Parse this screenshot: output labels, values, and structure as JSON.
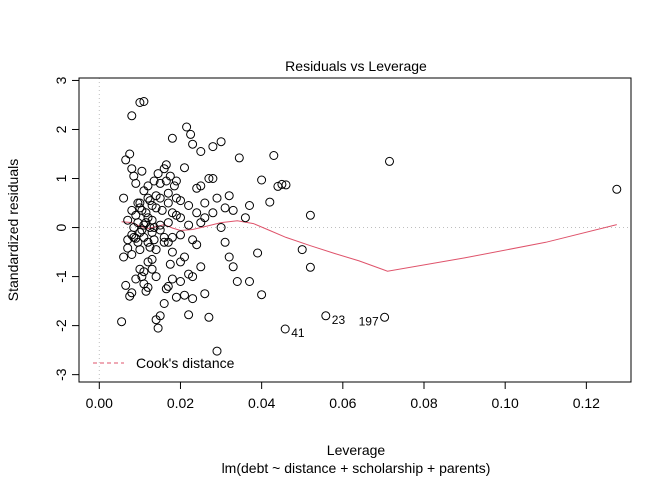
{
  "chart_data": {
    "type": "scatter",
    "title": "Residuals vs Leverage",
    "xlabel": "Leverage",
    "ylabel": "Standardized residuals",
    "subtitle": "lm(debt ~ distance + scholarship + parents)",
    "xlim": [
      -0.005,
      0.131
    ],
    "ylim": [
      -3.15,
      3.05
    ],
    "x_ticks": [
      0.0,
      0.02,
      0.04,
      0.06,
      0.08,
      0.1,
      0.12
    ],
    "x_tick_labels": [
      "0.00",
      "0.02",
      "0.04",
      "0.06",
      "0.08",
      "0.10",
      "0.12"
    ],
    "y_ticks": [
      -3,
      -2,
      -1,
      0,
      1,
      2,
      3
    ],
    "y_tick_labels": [
      "-3",
      "-2",
      "-1",
      "0",
      "1",
      "2",
      "3"
    ],
    "legend": {
      "label": "Cook's distance",
      "position": "bottom-left",
      "color": "#df536b"
    },
    "colors": {
      "points": "#000000",
      "smooth": "#df536b",
      "reference": "#bebebe"
    },
    "points": [
      [
        0.0055,
        -1.92
      ],
      [
        0.006,
        -0.6
      ],
      [
        0.0065,
        -1.18
      ],
      [
        0.007,
        -0.42
      ],
      [
        0.0075,
        -1.4
      ],
      [
        0.008,
        -1.33
      ],
      [
        0.0085,
        -0.2
      ],
      [
        0.008,
        -0.55
      ],
      [
        0.009,
        -1.05
      ],
      [
        0.0095,
        -0.3
      ],
      [
        0.01,
        -0.85
      ],
      [
        0.0105,
        -1.0
      ],
      [
        0.011,
        -0.9
      ],
      [
        0.0115,
        -1.3
      ],
      [
        0.012,
        -0.7
      ],
      [
        0.0125,
        -0.4
      ],
      [
        0.013,
        -0.65
      ],
      [
        0.0135,
        -0.25
      ],
      [
        0.014,
        -1.88
      ],
      [
        0.0145,
        -2.05
      ],
      [
        0.015,
        -1.8
      ],
      [
        0.016,
        -1.55
      ],
      [
        0.0165,
        -1.25
      ],
      [
        0.017,
        -1.2
      ],
      [
        0.0175,
        -0.75
      ],
      [
        0.018,
        -0.2
      ],
      [
        0.019,
        -1.42
      ],
      [
        0.02,
        -1.1
      ],
      [
        0.021,
        -1.38
      ],
      [
        0.022,
        -1.78
      ],
      [
        0.023,
        -1.45
      ],
      [
        0.024,
        -0.35
      ],
      [
        0.025,
        -0.8
      ],
      [
        0.026,
        -1.35
      ],
      [
        0.027,
        -1.83
      ],
      [
        0.029,
        -2.52
      ],
      [
        0.031,
        -0.3
      ],
      [
        0.032,
        -0.6
      ],
      [
        0.033,
        -0.8
      ],
      [
        0.034,
        -1.1
      ],
      [
        0.037,
        -1.1
      ],
      [
        0.039,
        -0.52
      ],
      [
        0.04,
        -1.37
      ],
      [
        0.01,
        -0.45
      ],
      [
        0.012,
        -0.3
      ],
      [
        0.011,
        -0.2
      ],
      [
        0.013,
        -0.1
      ],
      [
        0.015,
        -0.05
      ],
      [
        0.016,
        -0.3
      ],
      [
        0.018,
        -0.5
      ],
      [
        0.02,
        -0.7
      ],
      [
        0.021,
        -0.6
      ],
      [
        0.022,
        -0.95
      ],
      [
        0.01,
        -0.1
      ],
      [
        0.009,
        -0.22
      ],
      [
        0.008,
        -0.15
      ],
      [
        0.012,
        -1.22
      ],
      [
        0.014,
        -1.0
      ],
      [
        0.05,
        -0.45
      ],
      [
        0.052,
        -0.81
      ],
      [
        0.006,
        0.6
      ],
      [
        0.0065,
        1.38
      ],
      [
        0.007,
        0.15
      ],
      [
        0.0075,
        1.5
      ],
      [
        0.008,
        1.2
      ],
      [
        0.0085,
        1.05
      ],
      [
        0.009,
        0.9
      ],
      [
        0.0095,
        0.5
      ],
      [
        0.01,
        2.55
      ],
      [
        0.011,
        2.57
      ],
      [
        0.008,
        2.28
      ],
      [
        0.01,
        0.4
      ],
      [
        0.0105,
        0.35
      ],
      [
        0.011,
        0.75
      ],
      [
        0.0115,
        0.3
      ],
      [
        0.012,
        0.2
      ],
      [
        0.0125,
        0.55
      ],
      [
        0.013,
        0.15
      ],
      [
        0.0135,
        0.95
      ],
      [
        0.014,
        0.4
      ],
      [
        0.0145,
        1.1
      ],
      [
        0.015,
        0.6
      ],
      [
        0.0155,
        0.35
      ],
      [
        0.016,
        1.2
      ],
      [
        0.0165,
        1.28
      ],
      [
        0.017,
        0.5
      ],
      [
        0.0175,
        1.05
      ],
      [
        0.018,
        0.3
      ],
      [
        0.0185,
        0.85
      ],
      [
        0.019,
        0.6
      ],
      [
        0.02,
        0.2
      ],
      [
        0.021,
        1.22
      ],
      [
        0.0215,
        2.05
      ],
      [
        0.0225,
        1.9
      ],
      [
        0.023,
        1.7
      ],
      [
        0.024,
        0.8
      ],
      [
        0.025,
        1.55
      ],
      [
        0.026,
        0.5
      ],
      [
        0.027,
        1.0
      ],
      [
        0.028,
        1.65
      ],
      [
        0.029,
        0.6
      ],
      [
        0.03,
        1.75
      ],
      [
        0.031,
        0.4
      ],
      [
        0.032,
        0.65
      ],
      [
        0.033,
        0.35
      ],
      [
        0.0345,
        1.42
      ],
      [
        0.036,
        0.2
      ],
      [
        0.037,
        0.45
      ],
      [
        0.04,
        0.97
      ],
      [
        0.042,
        0.52
      ],
      [
        0.043,
        1.47
      ],
      [
        0.044,
        0.84
      ],
      [
        0.045,
        0.88
      ],
      [
        0.046,
        0.87
      ],
      [
        0.052,
        0.25
      ],
      [
        0.0715,
        1.35
      ],
      [
        0.1275,
        0.78
      ],
      [
        0.009,
        0.25
      ],
      [
        0.011,
        0.05
      ],
      [
        0.013,
        0.45
      ],
      [
        0.015,
        0.05
      ],
      [
        0.017,
        0.1
      ],
      [
        0.019,
        0.25
      ],
      [
        0.02,
        0.55
      ],
      [
        0.022,
        0.05
      ],
      [
        0.024,
        0.3
      ],
      [
        0.018,
        1.82
      ],
      [
        0.0165,
        0.95
      ],
      [
        0.012,
        0.85
      ],
      [
        0.0105,
        1.15
      ],
      [
        0.014,
        0.65
      ],
      [
        0.022,
        0.45
      ],
      [
        0.025,
        0.85
      ],
      [
        0.01,
        0.5
      ],
      [
        0.0085,
        0.0
      ],
      [
        0.0095,
        0.1
      ],
      [
        0.0105,
        -0.05
      ],
      [
        0.0115,
        0.1
      ],
      [
        0.0125,
        0.0
      ],
      [
        0.0135,
        0.0
      ],
      [
        0.007,
        -0.25
      ],
      [
        0.016,
        -0.2
      ],
      [
        0.02,
        -0.15
      ],
      [
        0.023,
        -0.25
      ],
      [
        0.008,
        0.35
      ],
      [
        0.012,
        0.6
      ],
      [
        0.015,
        0.9
      ],
      [
        0.017,
        0.7
      ],
      [
        0.019,
        0.95
      ],
      [
        0.026,
        0.2
      ],
      [
        0.017,
        -0.3
      ],
      [
        0.013,
        -0.85
      ],
      [
        0.011,
        -1.15
      ],
      [
        0.018,
        -1.05
      ],
      [
        0.023,
        -1.0
      ],
      [
        0.028,
        1.0
      ],
      [
        0.03,
        0.0
      ],
      [
        0.025,
        0.1
      ],
      [
        0.028,
        0.3
      ],
      [
        0.014,
        -0.45
      ]
    ],
    "labeled_points": [
      {
        "label": "41",
        "x": 0.0458,
        "y": -2.07
      },
      {
        "label": "23",
        "x": 0.0558,
        "y": -1.8
      },
      {
        "label": "197",
        "x": 0.0703,
        "y": -1.83
      }
    ],
    "smooth_line": [
      [
        0.0055,
        0.12
      ],
      [
        0.008,
        0.1
      ],
      [
        0.01,
        0.03
      ],
      [
        0.012,
        -0.02
      ],
      [
        0.014,
        0.02
      ],
      [
        0.016,
        0.06
      ],
      [
        0.018,
        -0.01
      ],
      [
        0.02,
        -0.06
      ],
      [
        0.023,
        -0.04
      ],
      [
        0.026,
        0.02
      ],
      [
        0.03,
        0.1
      ],
      [
        0.034,
        0.14
      ],
      [
        0.038,
        0.08
      ],
      [
        0.042,
        -0.06
      ],
      [
        0.046,
        -0.2
      ],
      [
        0.052,
        -0.37
      ],
      [
        0.058,
        -0.53
      ],
      [
        0.064,
        -0.68
      ],
      [
        0.071,
        -0.89
      ],
      [
        0.09,
        -0.62
      ],
      [
        0.11,
        -0.3
      ],
      [
        0.1275,
        0.06
      ]
    ]
  }
}
